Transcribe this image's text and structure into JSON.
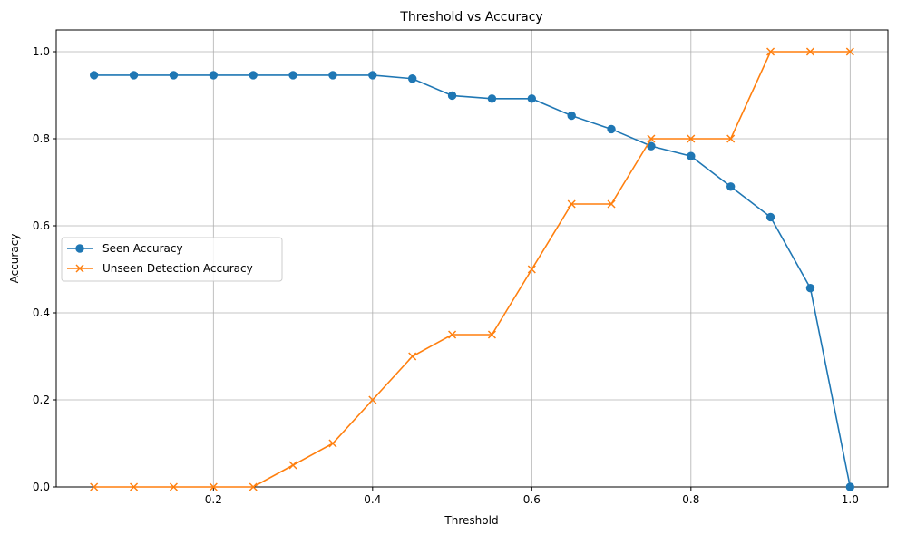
{
  "chart_data": {
    "type": "line",
    "title": "Threshold vs Accuracy",
    "xlabel": "Threshold",
    "ylabel": "Accuracy",
    "xlim": [
      0.0025,
      1.0475
    ],
    "ylim": [
      0.0,
      1.05
    ],
    "xticks": [
      0.2,
      0.4,
      0.6,
      0.8,
      1.0
    ],
    "xtick_labels": [
      "0.2",
      "0.4",
      "0.6",
      "0.8",
      "1.0"
    ],
    "yticks": [
      0.0,
      0.2,
      0.4,
      0.6,
      0.8,
      1.0
    ],
    "ytick_labels": [
      "0.0",
      "0.2",
      "0.4",
      "0.6",
      "0.8",
      "1.0"
    ],
    "grid": true,
    "legend_position": "center-left",
    "x": [
      0.05,
      0.1,
      0.15,
      0.2,
      0.25,
      0.3,
      0.35,
      0.4,
      0.45,
      0.5,
      0.55,
      0.6,
      0.65,
      0.7,
      0.75,
      0.8,
      0.85,
      0.9,
      0.95,
      1.0
    ],
    "series": [
      {
        "name": "Seen Accuracy",
        "color": "#1f77b4",
        "marker": "circle",
        "values": [
          0.946,
          0.946,
          0.946,
          0.946,
          0.946,
          0.946,
          0.946,
          0.946,
          0.938,
          0.899,
          0.892,
          0.892,
          0.853,
          0.822,
          0.783,
          0.76,
          0.69,
          0.62,
          0.457,
          0.0
        ]
      },
      {
        "name": "Unseen Detection Accuracy",
        "color": "#ff7f0e",
        "marker": "x",
        "values": [
          0.0,
          0.0,
          0.0,
          0.0,
          0.0,
          0.05,
          0.1,
          0.2,
          0.3,
          0.35,
          0.35,
          0.5,
          0.65,
          0.65,
          0.8,
          0.8,
          0.8,
          1.0,
          1.0,
          1.0
        ]
      }
    ]
  }
}
